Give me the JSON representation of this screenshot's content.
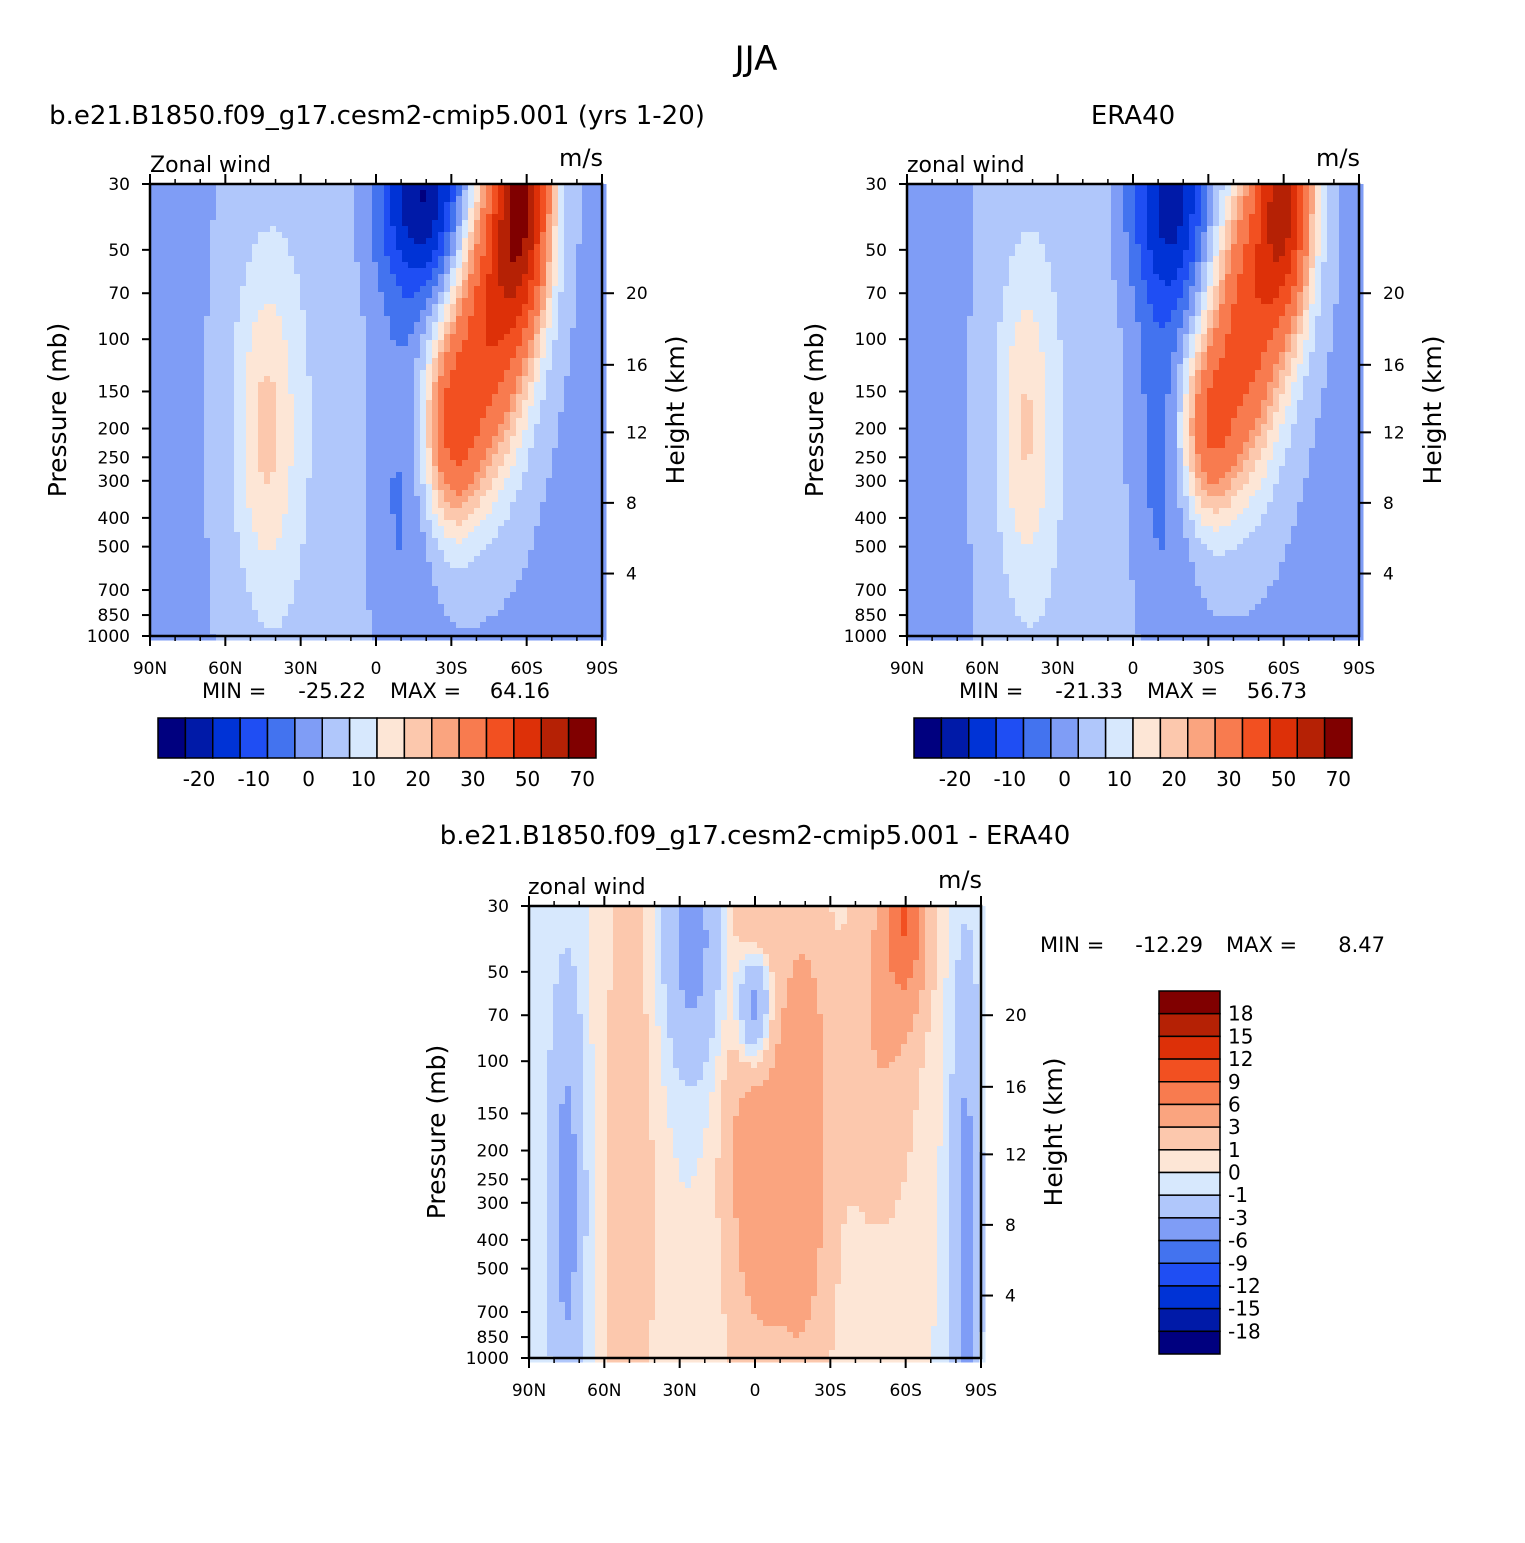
{
  "figure": {
    "title": "JJA"
  },
  "colors": {
    "full_field": [
      "#00007f",
      "#001aa8",
      "#0033d6",
      "#1f4ef3",
      "#4373ef",
      "#7f9df6",
      "#b0c7fb",
      "#d7e8fd",
      "#fde6d6",
      "#fcc8ad",
      "#faa47f",
      "#f87b4f",
      "#f25021",
      "#dd3008",
      "#b52105",
      "#800000"
    ],
    "difference": [
      "#00007f",
      "#001aa8",
      "#0033d6",
      "#1f4ef3",
      "#4373ef",
      "#7f9df6",
      "#b0c7fb",
      "#d7e8fd",
      "#fde6d6",
      "#fcc8ad",
      "#faa47f",
      "#f87b4f",
      "#f25021",
      "#dd3008",
      "#b52105",
      "#800000"
    ]
  },
  "chart_data": [
    {
      "type": "heatmap",
      "title": "b.e21.B1850.f09_g17.cesm2-cmip5.001 (yrs 1-20)",
      "subtitle_left": "Zonal wind",
      "subtitle_right": "m/s",
      "ylabel": "Pressure (mb)",
      "ylabel_right": "Height (km)",
      "x_ticks": [
        "90N",
        "60N",
        "30N",
        "0",
        "30S",
        "60S",
        "90S"
      ],
      "y_ticks": [
        "30",
        "50",
        "70",
        "100",
        "150",
        "200",
        "250",
        "300",
        "400",
        "500",
        "700",
        "850",
        "1000"
      ],
      "y_right_ticks": [
        "4",
        "8",
        "12",
        "16",
        "20"
      ],
      "stats": {
        "min_label": "MIN =",
        "min": "-25.22",
        "max_label": "MAX =",
        "max": "64.16"
      },
      "colorbar_labels": [
        "-20",
        "-10",
        "0",
        "10",
        "20",
        "30",
        "50",
        "70"
      ],
      "levels": [
        -25,
        -20,
        -15,
        -10,
        -5,
        0,
        5,
        10,
        15,
        20,
        25,
        30,
        40,
        50,
        60,
        70,
        80
      ],
      "features": [
        {
          "lat": -19,
          "p": 33,
          "value": -25,
          "sx": 13,
          "sy": 0.55
        },
        {
          "lat": -10,
          "p": 300,
          "value": -7,
          "sx": 10,
          "sy": 1.2
        },
        {
          "lat": 44,
          "p": 200,
          "value": 15,
          "sx": 9,
          "sy": 0.9
        },
        {
          "lat": -30,
          "p": 200,
          "value": 34,
          "sx": 8,
          "sy": 0.55
        },
        {
          "lat": -45,
          "p": 90,
          "value": 40,
          "sx": 10,
          "sy": 0.8
        },
        {
          "lat": -58,
          "p": 33,
          "value": 64,
          "sx": 8,
          "sy": 0.7
        }
      ]
    },
    {
      "type": "heatmap",
      "title": "ERA40",
      "subtitle_left": "zonal wind",
      "subtitle_right": "m/s",
      "ylabel": "Pressure (mb)",
      "ylabel_right": "Height (km)",
      "x_ticks": [
        "90N",
        "60N",
        "30N",
        "0",
        "30S",
        "60S",
        "90S"
      ],
      "y_ticks": [
        "30",
        "50",
        "70",
        "100",
        "150",
        "200",
        "250",
        "300",
        "400",
        "500",
        "700",
        "850",
        "1000"
      ],
      "y_right_ticks": [
        "4",
        "8",
        "12",
        "16",
        "20"
      ],
      "stats": {
        "min_label": "MIN =",
        "min": "-21.33",
        "max_label": "MAX =",
        "max": "56.73"
      },
      "colorbar_labels": [
        "-20",
        "-10",
        "0",
        "10",
        "20",
        "30",
        "50",
        "70"
      ],
      "levels": [
        -25,
        -20,
        -15,
        -10,
        -5,
        0,
        5,
        10,
        15,
        20,
        25,
        30,
        40,
        50,
        60,
        70,
        80
      ],
      "features": [
        {
          "lat": -15,
          "p": 33,
          "value": -21,
          "sx": 12,
          "sy": 0.6
        },
        {
          "lat": -12,
          "p": 200,
          "value": -9,
          "sx": 9,
          "sy": 1.1
        },
        {
          "lat": 43,
          "p": 200,
          "value": 14,
          "sx": 8,
          "sy": 0.9
        },
        {
          "lat": -30,
          "p": 200,
          "value": 31,
          "sx": 8,
          "sy": 0.5
        },
        {
          "lat": -45,
          "p": 90,
          "value": 38,
          "sx": 10,
          "sy": 0.8
        },
        {
          "lat": -60,
          "p": 33,
          "value": 56,
          "sx": 8,
          "sy": 0.7
        }
      ]
    },
    {
      "type": "heatmap",
      "title": "b.e21.B1850.f09_g17.cesm2-cmip5.001 - ERA40",
      "subtitle_left": "zonal wind",
      "subtitle_right": "m/s",
      "ylabel": "Pressure (mb)",
      "ylabel_right": "Height (km)",
      "x_ticks": [
        "90N",
        "60N",
        "30N",
        "0",
        "30S",
        "60S",
        "90S"
      ],
      "y_ticks": [
        "30",
        "50",
        "70",
        "100",
        "150",
        "200",
        "250",
        "300",
        "400",
        "500",
        "700",
        "850",
        "1000"
      ],
      "y_right_ticks": [
        "4",
        "8",
        "12",
        "16",
        "20"
      ],
      "stats": {
        "min_label": "MIN =",
        "min": "-12.29",
        "max_label": "MAX =",
        "max": "8.47"
      },
      "colorbar_labels": [
        "18",
        "15",
        "12",
        "9",
        "6",
        "3",
        "1",
        "0",
        "-1",
        "-3",
        "-6",
        "-9",
        "-12",
        "-15",
        "-18"
      ],
      "levels": [
        -21,
        -18,
        -15,
        -12,
        -9,
        -6,
        -3,
        -1,
        0,
        1,
        3,
        6,
        9,
        12,
        15,
        18,
        21
      ],
      "features": [
        {
          "lat": 75,
          "p": 300,
          "value": -4,
          "sx": 5,
          "sy": 1.2
        },
        {
          "lat": 50,
          "p": 300,
          "value": 2,
          "sx": 8,
          "sy": 2.5
        },
        {
          "lat": 25,
          "p": 40,
          "value": -4,
          "sx": 8,
          "sy": 0.7
        },
        {
          "lat": 0,
          "p": 65,
          "value": -7,
          "sx": 5,
          "sy": 0.4
        },
        {
          "lat": 0,
          "p": 32,
          "value": 3,
          "sx": 6,
          "sy": 0.4
        },
        {
          "lat": 0,
          "p": 180,
          "value": 4,
          "sx": 8,
          "sy": 1.0
        },
        {
          "lat": -20,
          "p": 150,
          "value": 4,
          "sx": 7,
          "sy": 1.2
        },
        {
          "lat": -10,
          "p": 400,
          "value": 2,
          "sx": 14,
          "sy": 1.5
        },
        {
          "lat": -50,
          "p": 80,
          "value": 3,
          "sx": 10,
          "sy": 1.0
        },
        {
          "lat": -60,
          "p": 32,
          "value": 8,
          "sx": 6,
          "sy": 0.5
        },
        {
          "lat": -84,
          "p": 400,
          "value": -4,
          "sx": 4,
          "sy": 1.5
        }
      ]
    }
  ]
}
